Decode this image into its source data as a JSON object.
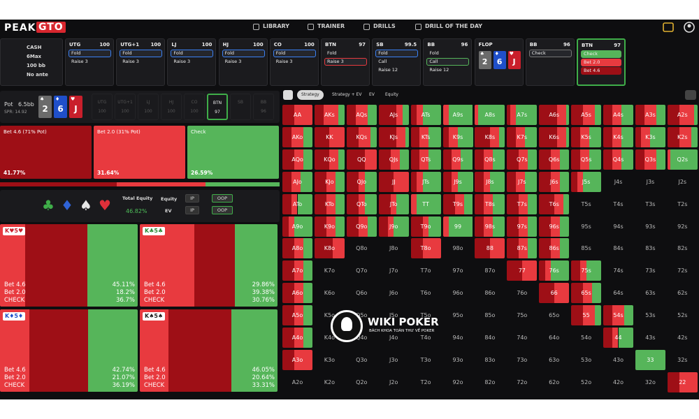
{
  "nav": {
    "logo_left": "PEAK",
    "logo_right": "GTO",
    "items": [
      "LIBRARY",
      "TRAINER",
      "DRILLS",
      "DRILL OF THE DAY"
    ]
  },
  "game": {
    "format": "CASH",
    "players": "6Max",
    "stack": "100 bb",
    "ante": "No ante"
  },
  "actions": [
    {
      "position": "UTG",
      "stack": 100,
      "options": [
        "Fold",
        "Raise 3"
      ],
      "highlight": 0,
      "highlight_color": "#3b82f6"
    },
    {
      "position": "UTG+1",
      "stack": 100,
      "options": [
        "Fold",
        "Raise 3"
      ],
      "highlight": 0,
      "highlight_color": "#3b82f6"
    },
    {
      "position": "LJ",
      "stack": 100,
      "options": [
        "Fold",
        "Raise 3"
      ],
      "highlight": 0,
      "highlight_color": "#3b82f6"
    },
    {
      "position": "HJ",
      "stack": 100,
      "options": [
        "Fold",
        "Raise 3"
      ],
      "highlight": 0,
      "highlight_color": "#3b82f6"
    },
    {
      "position": "CO",
      "stack": 100,
      "options": [
        "Fold",
        "Raise 3"
      ],
      "highlight": 0,
      "highlight_color": "#3b82f6"
    },
    {
      "position": "BTN",
      "stack": 97,
      "options": [
        "Fold",
        "Raise 3"
      ],
      "highlight": 1,
      "highlight_color": "#e83a3f"
    },
    {
      "position": "SB",
      "stack": 99.5,
      "options": [
        "Fold",
        "Call",
        "Raise 12"
      ],
      "highlight": 0,
      "highlight_color": "#3b82f6"
    },
    {
      "position": "BB",
      "stack": 96,
      "options": [
        "Fold",
        "Call",
        "Raise 12"
      ],
      "highlight": 1,
      "highlight_color": "#56b55a"
    },
    {
      "position": "FLOP",
      "board": [
        {
          "rank": "2",
          "suit": "♠",
          "color": "#6b6b6b"
        },
        {
          "rank": "6",
          "suit": "♦",
          "color": "#1f4fc9"
        },
        {
          "rank": "J",
          "suit": "♥",
          "color": "#c91f2b"
        }
      ]
    },
    {
      "position": "BB",
      "stack": 96,
      "options": [
        "Check"
      ],
      "highlight": 0,
      "highlight_color": "#777777"
    },
    {
      "position": "BTN",
      "stack": 97,
      "options": [
        "Check",
        "Bet 2.0",
        "Bet 4.6"
      ],
      "option_colors": [
        "#56b55a",
        "#e83a3f",
        "#9e0f16"
      ],
      "active": true
    }
  ],
  "pot": {
    "label": "Pot",
    "value": "6.5bb",
    "spr": "SPR: 14.92"
  },
  "board": [
    {
      "rank": "2",
      "suit": "♠",
      "color": "#6b6b6b"
    },
    {
      "rank": "6",
      "suit": "♦",
      "color": "#1f4fc9"
    },
    {
      "rank": "J",
      "suit": "♥",
      "color": "#c91f2b"
    }
  ],
  "seats": [
    {
      "position": "UTG",
      "stack": 100
    },
    {
      "position": "UTG+1",
      "stack": 100
    },
    {
      "position": "LJ",
      "stack": 100
    },
    {
      "position": "HJ",
      "stack": 100
    },
    {
      "position": "CO",
      "stack": 100
    },
    {
      "position": "BTN",
      "stack": 97,
      "active": true
    },
    {
      "position": "SB"
    },
    {
      "position": "BB",
      "stack": 96
    }
  ],
  "strategy": {
    "actions": [
      {
        "name": "Bet 4.6 (71% Pot)",
        "freq": 41.77,
        "freq_label": "41.77%",
        "color": "#9e0f16"
      },
      {
        "name": "Bet 2.0 (31% Pot)",
        "freq": 31.64,
        "freq_label": "31.64%",
        "color": "#e83a3f"
      },
      {
        "name": "Check",
        "freq": 26.59,
        "freq_label": "26.59%",
        "color": "#56b55a"
      }
    ]
  },
  "equity": {
    "suits": [
      {
        "symbol": "♣",
        "color": "#3fae49"
      },
      {
        "symbol": "♦",
        "color": "#2f63d6"
      },
      {
        "symbol": "♠",
        "color": "#e6e6e6"
      },
      {
        "symbol": "♥",
        "color": "#e0303a"
      }
    ],
    "total_label": "Total Equity",
    "total_value": "46.82%",
    "equity_toggle": {
      "label": "Equity",
      "options": [
        "IP",
        "OOP"
      ],
      "active": 1
    },
    "ev_toggle": {
      "label": "EV",
      "options": [
        "IP",
        "OOP"
      ],
      "active": 1
    }
  },
  "hands": [
    {
      "label": "K♥5♥",
      "label_color": "#c91f2b",
      "lines": [
        "Bet 4.6",
        "Bet 2.0",
        "CHECK"
      ],
      "freqs": [
        45.11,
        18.2,
        36.7
      ],
      "freq_labels": [
        "45.11%",
        "18.2%",
        "36.7%"
      ]
    },
    {
      "label": "K♣5♣",
      "label_color": "#2a8a35",
      "lines": [
        "Bet 4.6",
        "Bet 2.0",
        "CHECK"
      ],
      "freqs": [
        29.86,
        39.38,
        30.76
      ],
      "freq_labels": [
        "29.86%",
        "39.38%",
        "30.76%"
      ]
    },
    {
      "label": "K♦5♦",
      "label_color": "#1f4fc9",
      "lines": [
        "Bet 4.6",
        "Bet 2.0",
        "CHECK"
      ],
      "freqs": [
        42.74,
        21.07,
        36.19
      ],
      "freq_labels": [
        "42.74%",
        "21.07%",
        "36.19%"
      ]
    },
    {
      "label": "K♠5♠",
      "label_color": "#222222",
      "lines": [
        "Bet 4.6",
        "Bet 2.0",
        "CHECK"
      ],
      "freqs": [
        46.05,
        20.64,
        33.31
      ],
      "freq_labels": [
        "46.05%",
        "20.64%",
        "33.31%"
      ]
    }
  ],
  "tabs": {
    "items": [
      "Strategy",
      "Strategy + EV",
      "EV",
      "Equity"
    ],
    "active": 0
  },
  "grid": {
    "hands": [
      [
        "AA",
        "AKs",
        "AQs",
        "AJs",
        "ATs",
        "A9s",
        "A8s",
        "A7s",
        "A6s",
        "A5s",
        "A4s",
        "A3s",
        "A2s"
      ],
      [
        "AKo",
        "KK",
        "KQs",
        "KJs",
        "KTs",
        "K9s",
        "K8s",
        "K7s",
        "K6s",
        "K5s",
        "K4s",
        "K3s",
        "K2s"
      ],
      [
        "AQo",
        "KQo",
        "QQ",
        "QJs",
        "QTs",
        "Q9s",
        "Q8s",
        "Q7s",
        "Q6s",
        "Q5s",
        "Q4s",
        "Q3s",
        "Q2s"
      ],
      [
        "AJo",
        "KJo",
        "QJo",
        "JJ",
        "JTs",
        "J9s",
        "J8s",
        "J7s",
        "J6s",
        "J5s",
        "J4s",
        "J3s",
        "J2s"
      ],
      [
        "ATo",
        "KTo",
        "QTo",
        "JTo",
        "TT",
        "T9s",
        "T8s",
        "T7s",
        "T6s",
        "T5s",
        "T4s",
        "T3s",
        "T2s"
      ],
      [
        "A9o",
        "K9o",
        "Q9o",
        "J9o",
        "T9o",
        "99",
        "98s",
        "97s",
        "96s",
        "95s",
        "94s",
        "93s",
        "92s"
      ],
      [
        "A8o",
        "K8o",
        "Q8o",
        "J8o",
        "T8o",
        "98o",
        "88",
        "87s",
        "86s",
        "85s",
        "84s",
        "83s",
        "82s"
      ],
      [
        "A7o",
        "K7o",
        "Q7o",
        "J7o",
        "T7o",
        "97o",
        "87o",
        "77",
        "76s",
        "75s",
        "74s",
        "73s",
        "72s"
      ],
      [
        "A6o",
        "K6o",
        "Q6o",
        "J6o",
        "T6o",
        "96o",
        "86o",
        "76o",
        "66",
        "65s",
        "64s",
        "63s",
        "62s"
      ],
      [
        "A5o",
        "K5o",
        "Q5o",
        "J5o",
        "T5o",
        "95o",
        "85o",
        "75o",
        "65o",
        "55",
        "54s",
        "53s",
        "52s"
      ],
      [
        "A4o",
        "K4o",
        "Q4o",
        "J4o",
        "T4o",
        "94o",
        "84o",
        "74o",
        "64o",
        "54o",
        "44",
        "43s",
        "42s"
      ],
      [
        "A3o",
        "K3o",
        "Q3o",
        "J3o",
        "T3o",
        "93o",
        "83o",
        "73o",
        "63o",
        "53o",
        "43o",
        "33",
        "32s"
      ],
      [
        "A2o",
        "K2o",
        "Q2o",
        "J2o",
        "T2o",
        "92o",
        "82o",
        "72o",
        "62o",
        "52o",
        "42o",
        "32o",
        "22"
      ]
    ],
    "mix": [
      [
        [
          40,
          60,
          0
        ],
        [
          30,
          50,
          20
        ],
        [
          30,
          40,
          30
        ],
        [
          60,
          20,
          20
        ],
        [
          20,
          20,
          60
        ],
        [
          0,
          20,
          80
        ],
        [
          0,
          10,
          90
        ],
        [
          10,
          20,
          70
        ],
        [
          60,
          30,
          10
        ],
        [
          40,
          40,
          20
        ],
        [
          30,
          30,
          40
        ],
        [
          30,
          40,
          30
        ],
        [
          40,
          50,
          10
        ]
      ],
      [
        [
          30,
          40,
          30
        ],
        [
          50,
          50,
          0
        ],
        [
          40,
          40,
          20
        ],
        [
          60,
          30,
          10
        ],
        [
          30,
          30,
          40
        ],
        [
          20,
          30,
          50
        ],
        [
          50,
          30,
          20
        ],
        [
          30,
          30,
          40
        ],
        [
          60,
          30,
          10
        ],
        [
          30,
          30,
          40
        ],
        [
          30,
          30,
          40
        ],
        [
          20,
          30,
          50
        ],
        [
          40,
          40,
          20
        ]
      ],
      [
        [
          40,
          30,
          30
        ],
        [
          50,
          30,
          20
        ],
        [
          60,
          40,
          0
        ],
        [
          40,
          30,
          30
        ],
        [
          30,
          30,
          40
        ],
        [
          30,
          30,
          40
        ],
        [
          30,
          30,
          40
        ],
        [
          40,
          30,
          30
        ],
        [
          40,
          30,
          30
        ],
        [
          30,
          30,
          40
        ],
        [
          30,
          30,
          40
        ],
        [
          30,
          40,
          30
        ],
        [
          0,
          10,
          90
        ]
      ],
      [
        [
          30,
          30,
          40
        ],
        [
          40,
          30,
          30
        ],
        [
          40,
          20,
          40
        ],
        [
          50,
          50,
          0
        ],
        [
          20,
          20,
          60
        ],
        [
          30,
          20,
          50
        ],
        [
          30,
          20,
          50
        ],
        [
          30,
          30,
          40
        ],
        [
          40,
          30,
          30
        ],
        [
          20,
          20,
          60
        ],
        null,
        null,
        null
      ],
      [
        [
          30,
          20,
          50
        ],
        [
          40,
          30,
          30
        ],
        [
          40,
          20,
          40
        ],
        [
          40,
          20,
          40
        ],
        [
          0,
          20,
          80
        ],
        [
          40,
          30,
          30
        ],
        [
          30,
          30,
          40
        ],
        [
          40,
          30,
          30
        ],
        [
          50,
          30,
          20
        ],
        null,
        null,
        null,
        null
      ],
      [
        [
          20,
          20,
          60
        ],
        [
          40,
          30,
          30
        ],
        [
          40,
          30,
          30
        ],
        [
          30,
          20,
          50
        ],
        [
          40,
          20,
          40
        ],
        [
          0,
          20,
          80
        ],
        [
          30,
          30,
          40
        ],
        [
          40,
          30,
          30
        ],
        [
          40,
          30,
          30
        ],
        null,
        null,
        null,
        null
      ],
      [
        [
          40,
          30,
          30
        ],
        [
          60,
          40,
          0
        ],
        null,
        null,
        [
          40,
          60,
          0
        ],
        null,
        [
          50,
          50,
          0
        ],
        [
          40,
          30,
          30
        ],
        [
          40,
          30,
          30
        ],
        null,
        null,
        null,
        null
      ],
      [
        [
          40,
          30,
          30
        ],
        null,
        null,
        null,
        null,
        null,
        null,
        [
          50,
          50,
          0
        ],
        [
          20,
          20,
          60
        ],
        [
          30,
          20,
          50
        ],
        null,
        null,
        null
      ],
      [
        [
          40,
          30,
          30
        ],
        null,
        null,
        null,
        null,
        null,
        null,
        null,
        [
          50,
          50,
          0
        ],
        [
          40,
          30,
          30
        ],
        null,
        null,
        null
      ],
      [
        [
          40,
          30,
          30
        ],
        null,
        null,
        null,
        null,
        null,
        null,
        null,
        null,
        [
          40,
          40,
          20
        ],
        [
          30,
          40,
          30
        ],
        null,
        null
      ],
      [
        [
          40,
          30,
          30
        ],
        null,
        null,
        null,
        null,
        null,
        null,
        null,
        null,
        null,
        [
          30,
          20,
          50
        ],
        null,
        null
      ],
      [
        [
          40,
          60,
          0
        ],
        null,
        null,
        null,
        null,
        null,
        null,
        null,
        null,
        null,
        null,
        [
          0,
          0,
          100
        ],
        null
      ],
      [
        null,
        null,
        null,
        null,
        null,
        null,
        null,
        null,
        null,
        null,
        null,
        null,
        [
          40,
          60,
          0
        ]
      ]
    ]
  },
  "watermark": {
    "title": "WIKI POKER",
    "subtitle": "BÁCH KHOA TOÀN THƯ VỀ POKER"
  }
}
